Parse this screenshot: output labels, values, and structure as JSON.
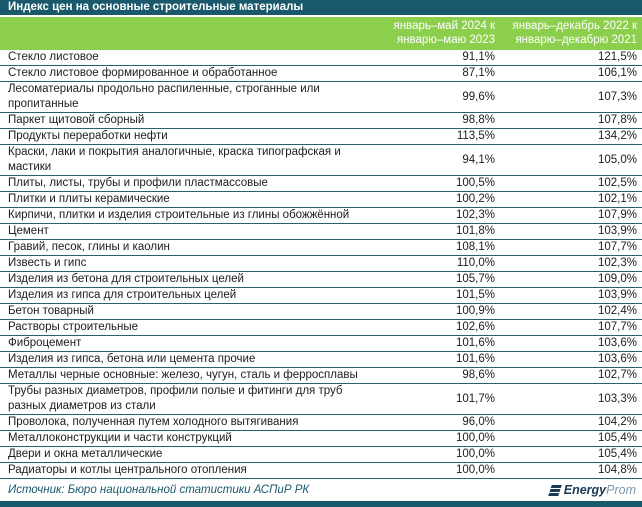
{
  "title": "Индекс цен на основные строительные материалы",
  "colors": {
    "title_bar": "#19596B",
    "header_green": "#8CCF4D",
    "row_border": "#2A616E",
    "source_text": "#19596B",
    "logo_dark": "#1B3A55",
    "logo_light": "#7E98AC"
  },
  "chart_data": {
    "type": "table",
    "title": "Индекс цен на основные строительные материалы",
    "columns": [
      "",
      "январь–май 2024 к\nянварю–маю 2023",
      "январь–декабрь 2022 к\nянварю–декабрю 2021"
    ],
    "rows": [
      [
        "Стекло листовое",
        "91,1%",
        "121,5%"
      ],
      [
        "Стекло листовое формированное и обработанное",
        "87,1%",
        "106,1%"
      ],
      [
        "Лесоматериалы продольно распиленные, строганные или\nпропитанные",
        "99,6%",
        "107,3%"
      ],
      [
        "Паркет щитовой сборный",
        "98,8%",
        "107,8%"
      ],
      [
        "Продукты переработки нефти",
        "113,5%",
        "134,2%"
      ],
      [
        "Краски, лаки и покрытия аналогичные, краска типографская и\nмастики",
        "94,1%",
        "105,0%"
      ],
      [
        "Плиты, листы, трубы и профили пластмассовые",
        "100,5%",
        "102,5%"
      ],
      [
        "Плитки и плиты керамические",
        "100,2%",
        "102,1%"
      ],
      [
        "Кирпичи, плитки и изделия строительные из глины обожжённой",
        "102,3%",
        "107,9%"
      ],
      [
        "Цемент",
        "101,8%",
        "103,9%"
      ],
      [
        "Гравий, песок, глины и каолин",
        "108,1%",
        "107,7%"
      ],
      [
        "Известь и гипс",
        "110,0%",
        "102,3%"
      ],
      [
        "Изделия из бетона для строительных целей",
        "105,7%",
        "109,0%"
      ],
      [
        "Изделия из гипса для строительных целей",
        "101,5%",
        "103,9%"
      ],
      [
        "Бетон товарный",
        "100,9%",
        "102,4%"
      ],
      [
        "Растворы строительные",
        "102,6%",
        "107,7%"
      ],
      [
        "Фиброцемент",
        "101,6%",
        "103,6%"
      ],
      [
        "Изделия из гипса, бетона или цемента прочие",
        "101,6%",
        "103,6%"
      ],
      [
        "Металлы черные основные: железо, чугун, сталь и ферросплавы",
        "98,6%",
        "102,7%"
      ],
      [
        "Трубы разных диаметров, профили полые и фитинги для труб\nразных диаметров из стали",
        "101,7%",
        "103,3%"
      ],
      [
        "Проволока, полученная путем холодного вытягивания",
        "96,0%",
        "104,2%"
      ],
      [
        "Металлоконструкции и части конструкций",
        "100,0%",
        "105,4%"
      ],
      [
        "Двери и окна металлические",
        "100,0%",
        "105,4%"
      ],
      [
        "Радиаторы и котлы центрального отопления",
        "100,0%",
        "104,8%"
      ]
    ]
  },
  "footer": {
    "source": "Источник: Бюро национальной статистики АСПиР РК",
    "logo_energy": "Energy",
    "logo_prom": "Prom"
  }
}
